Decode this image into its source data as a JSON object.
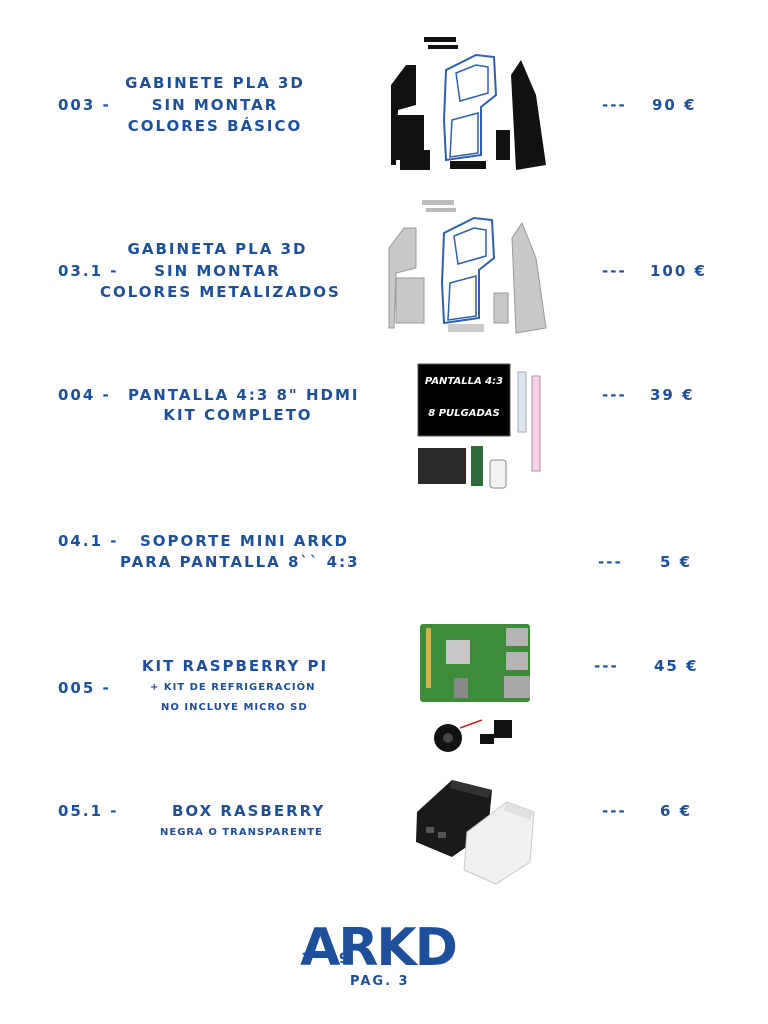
{
  "items": [
    {
      "code": "003 -",
      "lines": [
        "Gabinete PLA 3D",
        "Sin montar",
        "Colores básico"
      ],
      "dash": "---",
      "price": "90 €"
    },
    {
      "code": "03.1 -",
      "lines": [
        "Gabineta PLA 3D",
        "Sin montar",
        "Colores metalizados"
      ],
      "dash": "---",
      "price": "100 €"
    },
    {
      "code": "004 -",
      "lines": [
        "Pantalla 4:3 8\" HDMI",
        "Kit completo"
      ],
      "dash": "---",
      "price": "39 €",
      "image_text": [
        "PANTALLA 4:3",
        "8 PULGADAS"
      ]
    },
    {
      "code": "04.1 -",
      "lines": [
        "Soporte mini arkd",
        "para pantalla 8`` 4:3"
      ],
      "dash": "---",
      "price": "5 €"
    },
    {
      "code": "005 -",
      "lines": [
        "Kit Raspberry Pi",
        "+ Kit de refrigeración",
        "No incluye micro SD"
      ],
      "dash": "---",
      "price": "45 €"
    },
    {
      "code": "05.1 -",
      "lines": [
        "Box Rasberry",
        "Negra o transparente"
      ],
      "dash": "---",
      "price": "6 €"
    }
  ],
  "footer": {
    "logo": "ARKD",
    "logo_digits": [
      "1",
      "9",
      "8",
      "5"
    ],
    "page": "PAG. 3"
  },
  "colors": {
    "text": "#1e4f9a",
    "accent": "#2f5fb0"
  }
}
